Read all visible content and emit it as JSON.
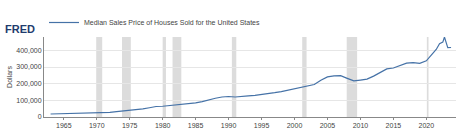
{
  "chart_data": {
    "type": "line",
    "annotations": [
      "FRED"
    ],
    "y_label": "Dollars",
    "series": [
      {
        "name": "Median Sales Price of Houses Sold for the United States",
        "color": "#4572a7",
        "x": [
          1963,
          1964,
          1965,
          1966,
          1967,
          1968,
          1969,
          1970,
          1971,
          1972,
          1973,
          1974,
          1975,
          1976,
          1977,
          1978,
          1979,
          1980,
          1981,
          1982,
          1983,
          1984,
          1985,
          1986,
          1987,
          1988,
          1989,
          1990,
          1991,
          1992,
          1993,
          1994,
          1995,
          1996,
          1997,
          1998,
          1999,
          2000,
          2001,
          2002,
          2003,
          2004,
          2005,
          2006,
          2007,
          2008,
          2009,
          2010,
          2011,
          2012,
          2013,
          2014,
          2015,
          2016,
          2017,
          2018,
          2019,
          2020,
          2021,
          2021.5,
          2022,
          2022.5,
          2022.75,
          2023.25,
          2023.75
        ],
        "values": [
          18000,
          18900,
          20000,
          21400,
          22700,
          24700,
          25600,
          23400,
          25200,
          27600,
          32500,
          35900,
          39300,
          44200,
          48800,
          55700,
          62900,
          64600,
          68900,
          69300,
          75300,
          79900,
          84300,
          92000,
          104500,
          112500,
          120000,
          122900,
          120000,
          121500,
          126500,
          130000,
          133900,
          140000,
          146000,
          152500,
          161000,
          169000,
          175200,
          187600,
          195000,
          221000,
          240900,
          246500,
          247900,
          232100,
          216700,
          221800,
          227200,
          245200,
          268900,
          288500,
          294200,
          307800,
          323100,
          326400,
          321500,
          336900,
          382000,
          405000,
          440000,
          449000,
          479500,
          416000,
          417000
        ]
      }
    ],
    "recessions": [
      [
        1969.92,
        1970.83
      ],
      [
        1973.83,
        1975.17
      ],
      [
        1980.0,
        1980.5
      ],
      [
        1981.5,
        1982.83
      ],
      [
        1990.5,
        1991.17
      ],
      [
        2001.17,
        2001.83
      ],
      [
        2007.92,
        2009.5
      ],
      [
        2020.08,
        2020.33
      ]
    ],
    "xlim": [
      1962,
      2024.5
    ],
    "xticks": [
      1965,
      1970,
      1975,
      1980,
      1985,
      1990,
      1995,
      2000,
      2005,
      2010,
      2015,
      2020
    ],
    "ylim": [
      0,
      480000
    ],
    "yticks": [
      0,
      {
        "value": 100000,
        "label": "100,000"
      },
      {
        "value": 200000,
        "label": "200,000"
      },
      {
        "value": 300000,
        "label": "300,000"
      },
      {
        "value": 400000,
        "label": "400,000"
      }
    ],
    "grid": true,
    "legend": "top left"
  }
}
